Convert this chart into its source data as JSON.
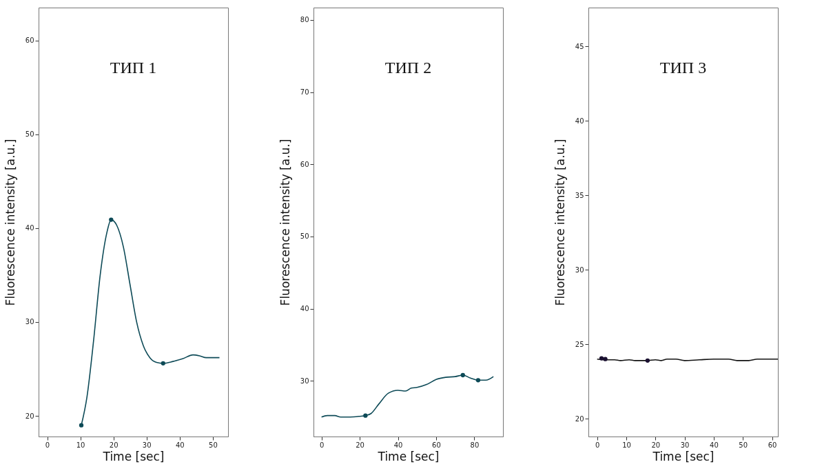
{
  "chart_data": [
    {
      "type": "line",
      "xlabel": "Time [sec]",
      "ylabel": "Fluorescence intensity [a.u.]",
      "annotations": [
        "ТИП 1"
      ],
      "xlim": [
        -2.6,
        54.6
      ],
      "ylim": [
        17.8,
        63.5
      ],
      "xticks": [
        0,
        10,
        20,
        30,
        40,
        50
      ],
      "yticks": [
        20,
        30,
        40,
        50,
        60
      ],
      "series": [
        {
          "marker": "none",
          "color": "#0d4a57",
          "x": [
            10.3,
            12,
            14,
            16,
            18,
            19.3,
            21,
            23,
            25,
            27,
            29,
            31,
            33,
            35,
            38,
            41,
            44,
            46,
            48,
            50,
            52
          ],
          "values": [
            19,
            22,
            28,
            35,
            39.5,
            40.9,
            40.3,
            38,
            34,
            30,
            27.5,
            26.2,
            25.7,
            25.6,
            25.8,
            26.1,
            26.5,
            26.4,
            26.2,
            26.2,
            26.2
          ]
        },
        {
          "type": "scatter",
          "marker": "circle",
          "color": "#0d4a57",
          "x": [
            10.3,
            19.3,
            35
          ],
          "values": [
            19,
            40.9,
            25.6
          ]
        }
      ]
    },
    {
      "type": "line",
      "xlabel": "Time [sec]",
      "ylabel": "Fluorescence intensity [a.u.]",
      "annotations": [
        "ТИП 2"
      ],
      "xlim": [
        -4.2,
        95
      ],
      "ylim": [
        22.3,
        81.7
      ],
      "xticks": [
        0,
        20,
        40,
        60,
        80
      ],
      "yticks": [
        30,
        40,
        50,
        60,
        70,
        80
      ],
      "series": [
        {
          "marker": "none",
          "color": "#0d4a57",
          "x": [
            0,
            3,
            7,
            10,
            15,
            20,
            23,
            26,
            30,
            35,
            40,
            44,
            47,
            50,
            55,
            60,
            65,
            70,
            74,
            78,
            82,
            86,
            90
          ],
          "values": [
            25,
            25.2,
            25.2,
            25,
            25,
            25.1,
            25.2,
            25.5,
            26.8,
            28.3,
            28.7,
            28.6,
            29,
            29.1,
            29.5,
            30.2,
            30.5,
            30.6,
            30.8,
            30.4,
            30.1,
            30.1,
            30.6
          ]
        },
        {
          "type": "scatter",
          "marker": "circle",
          "color": "#0d4a57",
          "x": [
            23,
            74,
            82
          ],
          "values": [
            25.2,
            30.8,
            30.1
          ]
        }
      ]
    },
    {
      "type": "line",
      "xlabel": "Time [sec]",
      "ylabel": "Fluorescence intensity [a.u.]",
      "annotations": [
        "ТИП 3"
      ],
      "xlim": [
        -3,
        62
      ],
      "ylim": [
        18.8,
        47.6
      ],
      "xticks": [
        0,
        10,
        20,
        30,
        40,
        50,
        60
      ],
      "yticks": [
        20,
        25,
        30,
        35,
        40,
        45
      ],
      "series": [
        {
          "marker": "none",
          "color": "#111111",
          "x": [
            0,
            3,
            6,
            8,
            11,
            13,
            17,
            20,
            22,
            24,
            27,
            30,
            35,
            40,
            45,
            48,
            52,
            55,
            62
          ],
          "values": [
            24,
            23.95,
            23.95,
            23.9,
            23.95,
            23.9,
            23.9,
            23.95,
            23.9,
            24,
            24,
            23.9,
            23.95,
            24,
            24,
            23.9,
            23.9,
            24,
            24
          ]
        },
        {
          "type": "scatter",
          "marker": "circle",
          "color": "#1a1030",
          "x": [
            1.5,
            2.8,
            17.3
          ],
          "values": [
            24.05,
            24,
            23.9
          ]
        }
      ]
    }
  ]
}
